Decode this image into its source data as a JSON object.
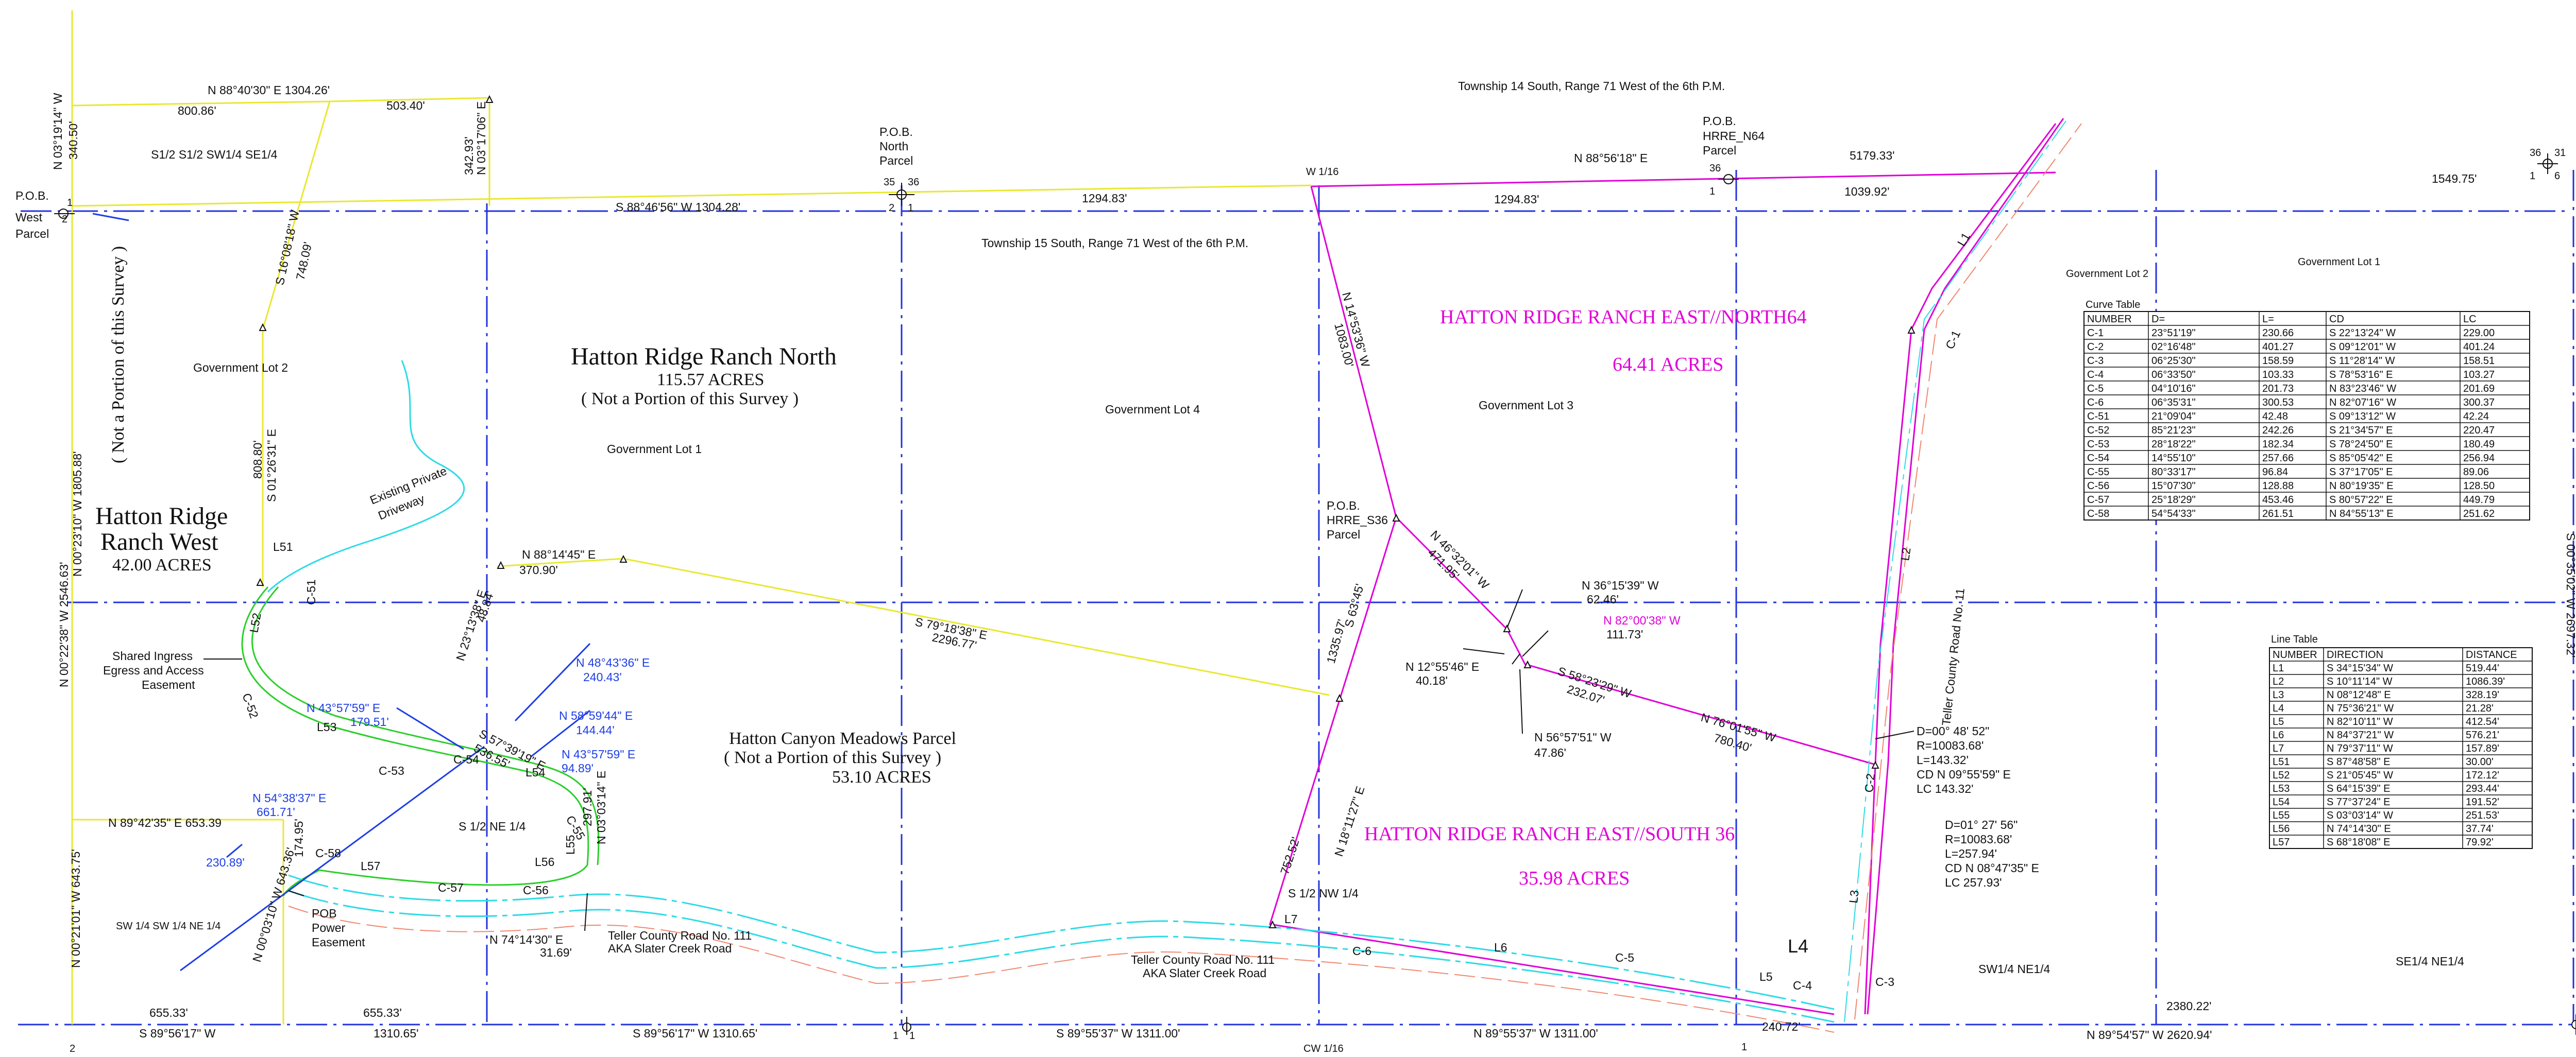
{
  "township_north": "Township 14 South, Range 71 West of the 6th P.M.",
  "township_south": "Township 15 South, Range 71 West of the 6th P.M.",
  "parcels": {
    "north": {
      "name": "Hatton Ridge Ranch North",
      "acres": "115.57 ACRES",
      "note": "( Not a Portion of this Survey )"
    },
    "west": {
      "name1": "Hatton Ridge",
      "name2": "Ranch West",
      "acres": "42.00 ACRES",
      "side_note": "( Not a Portion of this Survey )"
    },
    "canyon": {
      "name": "Hatton Canyon Meadows Parcel",
      "note": "( Not a Portion of this Survey )",
      "acres": "53.10 ACRES"
    },
    "east_north64": {
      "name": "HATTON RIDGE RANCH EAST//NORTH64",
      "acres": "64.41 ACRES"
    },
    "east_south36": {
      "name": "HATTON RIDGE RANCH EAST//SOUTH 36",
      "acres": "35.98 ACRES"
    }
  },
  "section_labels": {
    "s12": "S1/2 S1/2 SW1/4 SE1/4",
    "gov_lot_2": "Government Lot 2",
    "gov_lot_1": "Government Lot 1",
    "gov_lot_4": "Government Lot 4",
    "gov_lot_3": "Government Lot 3",
    "gov_lot_2_right": "Government Lot 2",
    "gov_lot_1_right": "Government Lot 1",
    "s12_ne14": "S 1/2 NE 1/4",
    "s12_nw14": "S 1/2 NW 1/4",
    "sw14_sw14_ne14": "SW 1/4 SW 1/4 NE 1/4",
    "sw14_ne14": "SW1/4 NE1/4",
    "se14_ne14": "SE1/4 NE1/4",
    "w116": "W 1/16",
    "cw116": "CW 1/16"
  },
  "pob_labels": {
    "west": [
      "P.O.B.",
      "West",
      "Parcel"
    ],
    "north": [
      "P.O.B.",
      "North",
      "Parcel"
    ],
    "n64": [
      "P.O.B.",
      "HRRE_N64",
      "Parcel"
    ],
    "s36": [
      "P.O.B.",
      "HRRE_S36",
      "Parcel"
    ],
    "power": [
      "POB",
      "Power",
      "Easement"
    ]
  },
  "features": {
    "driveway": [
      "Existing Private",
      "Driveway"
    ],
    "easement": [
      "Shared Ingress",
      "Egress and Access",
      "Easement"
    ],
    "road_left": [
      "Teller County Road No. 111",
      "AKA Slater Creek Road"
    ],
    "road_bottom": [
      "Teller County Road No. 111",
      "AKA Slater Creek Road"
    ],
    "road_right": "Teller County Road No. 11"
  },
  "bearings": {
    "top_a": "N 88°40'30\" E 1304.26'",
    "top_b": "800.86'",
    "top_c": "503.40'",
    "left_top": "N 03°19'14\" W",
    "left_top_d": "340.50'",
    "mid_a": "S 88°46'56\" W 1304.28'",
    "mid_b": "1294.83'",
    "mid_c": "1294.83'",
    "n88_56": "N 88°56'18\" E",
    "d5179": "5179.33'",
    "d1039": "1039.92'",
    "d1549": "1549.75'",
    "s16": "S 16°08'18\" W",
    "s16d": "748.09'",
    "n03_17": "N 03°17'06\" E",
    "n03_17d": "342.93'",
    "s01_26": "S 01°26'31\" E",
    "s01_26d": "808.80'",
    "n00_23": "N 00°23'10\" W 1805.88'",
    "n00_22": "N 00°22'38\" W 2546.63'",
    "n88_14": "N 88°14'45\" E",
    "d370": "370.90'",
    "n23_13": "N 23°13'38\" E",
    "d48": "48.84'",
    "s79_18": "S 79°18'38\" E",
    "d2296": "2296.77'",
    "n14_53": "N 14°53'36\" W",
    "d1083": "1083.00'",
    "n46_32": "N 46°32'01\" W",
    "d471": "471.95'",
    "s63_45": "S 63°45'",
    "d1335": "1335.97'",
    "n36": "N 36°15'39\" W",
    "n36d": "62.46'",
    "n82": "N 82°00'38\" W",
    "n82d": "111.73'",
    "n12": "N 12°55'46\" E",
    "n12d": "40.18'",
    "s58": "S 58°23'29\" W",
    "s58d": "232.07'",
    "n56": "N 56°57'51\" W",
    "n56d": "47.86'",
    "n76": "N 76°01'55\" W",
    "n76d": "780.40'",
    "n18": "N 18°11'27\" E",
    "d752": "752.52'",
    "n48": "N 48°43'36\" E",
    "n48d": "240.43'",
    "n43a": "N 43°57'59\" E",
    "n43ad": "179.51'",
    "n58": "N 58°59'44\" E",
    "n58d": "144.44'",
    "n43b": "N 43°57'59\" E",
    "n43bd": "94.89'",
    "s57": "S 57°39'19\" E",
    "s57d": "536.55'",
    "n89_42": "N 89°42'35\" E 653.39",
    "n54": "N 54°38'37\" E",
    "n54d": "661.71'",
    "d174": "174.95'",
    "d230": "230.89'",
    "n00_21": "N 00°21'01\" W 643.75'",
    "n00_03": "N 00°03'10\" W 643.36'",
    "n03_03": "N 03°03'14\" E",
    "d297": "297.91'",
    "n74": "N 74°14'30\" E",
    "d31": "31.69'",
    "bot1": "655.33'",
    "bot2": "S 89°56'17\" W",
    "bot3": "655.33'",
    "bot4": "1310.65'",
    "bot5": "S 89°56'17\" W 1310.65'",
    "bot6": "S 89°55'37\" W 1311.00'",
    "bot7": "N 89°55'37\" W 1311.00'",
    "bot8": "240.72'",
    "bot9": "2380.22'",
    "bot10": "N 89°54'57\" W 2620.94'",
    "s00_35": "S 00°35'02\" W 2697.32'"
  },
  "curve_notes": {
    "c1": [
      "D=00° 48' 52\"",
      "R=10083.68'",
      "L=143.32'",
      "CD N 09°55'59\" E",
      "LC 143.32'"
    ],
    "c2": [
      "D=01° 27' 56\"",
      "R=10083.68'",
      "L=257.94'",
      "CD N 08°47'35\" E",
      "LC 257.93'"
    ]
  },
  "line_labels": [
    "L1",
    "L2",
    "L3",
    "L4",
    "L5",
    "L6",
    "L7",
    "L51",
    "L52",
    "L53",
    "L54",
    "L55",
    "L56",
    "L57",
    "C-1",
    "C-2",
    "C-3",
    "C-4",
    "C-5",
    "C-6",
    "C-51",
    "C-52",
    "C-53",
    "C-54",
    "C-55",
    "C-56",
    "C-57",
    "C-58"
  ],
  "corner_numbers": [
    "2",
    "1",
    "35",
    "36",
    "2",
    "1",
    "36",
    "1",
    "36",
    "31",
    "1",
    "6",
    "2",
    "1",
    "6",
    "1",
    "1"
  ],
  "curve_table": {
    "title": "Curve Table",
    "headers": [
      "NUMBER",
      "D=",
      "L=",
      "CD",
      "LC"
    ],
    "rows": [
      [
        "C-1",
        "23°51'19\"",
        "230.66",
        "S 22°13'24\" W",
        "229.00"
      ],
      [
        "C-2",
        "02°16'48\"",
        "401.27",
        "S 09°12'01\" W",
        "401.24"
      ],
      [
        "C-3",
        "06°25'30\"",
        "158.59",
        "S 11°28'14\" W",
        "158.51"
      ],
      [
        "C-4",
        "06°33'50\"",
        "103.33",
        "S 78°53'16\" E",
        "103.27"
      ],
      [
        "C-5",
        "04°10'16\"",
        "201.73",
        "N 83°23'46\" W",
        "201.69"
      ],
      [
        "C-6",
        "06°35'31\"",
        "300.53",
        "N 82°07'16\" W",
        "300.37"
      ],
      [
        "C-51",
        "21°09'04\"",
        "42.48",
        "S 09°13'12\" W",
        "42.24"
      ],
      [
        "C-52",
        "85°21'23\"",
        "242.26",
        "S 21°34'57\" E",
        "220.47"
      ],
      [
        "C-53",
        "28°18'22\"",
        "182.34",
        "S 78°24'50\" E",
        "180.49"
      ],
      [
        "C-54",
        "14°55'10\"",
        "257.66",
        "S 85°05'42\" E",
        "256.94"
      ],
      [
        "C-55",
        "80°33'17\"",
        "96.84",
        "S 37°17'05\" E",
        "89.06"
      ],
      [
        "C-56",
        "15°07'30\"",
        "128.88",
        "N 80°19'35\" E",
        "128.50"
      ],
      [
        "C-57",
        "25°18'29\"",
        "453.46",
        "S 80°57'22\" E",
        "449.79"
      ],
      [
        "C-58",
        "54°54'33\"",
        "261.51",
        "N 84°55'13\" E",
        "251.62"
      ]
    ]
  },
  "line_table": {
    "title": "Line Table",
    "headers": [
      "NUMBER",
      "DIRECTION",
      "DISTANCE"
    ],
    "rows": [
      [
        "L1",
        "S 34°15'34\" W",
        "519.44'"
      ],
      [
        "L2",
        "S 10°11'14\" W",
        "1086.39'"
      ],
      [
        "L3",
        "N 08°12'48\" E",
        "328.19'"
      ],
      [
        "L4",
        "N 75°36'21\" W",
        "21.28'"
      ],
      [
        "L5",
        "N 82°10'11\" W",
        "412.54'"
      ],
      [
        "L6",
        "N 84°37'21\" W",
        "576.21'"
      ],
      [
        "L7",
        "N 79°37'11\" W",
        "157.89'"
      ],
      [
        "L51",
        "S 87°48'58\" E",
        "30.00'"
      ],
      [
        "L52",
        "S 21°05'45\" W",
        "172.12'"
      ],
      [
        "L53",
        "S 64°15'39\" E",
        "293.44'"
      ],
      [
        "L54",
        "S 77°37'24\" E",
        "191.52'"
      ],
      [
        "L55",
        "S 03°03'14\" W",
        "251.53'"
      ],
      [
        "L56",
        "N 74°14'30\" E",
        "37.74'"
      ],
      [
        "L57",
        "S 68°18'08\" E",
        "79.92'"
      ]
    ]
  }
}
